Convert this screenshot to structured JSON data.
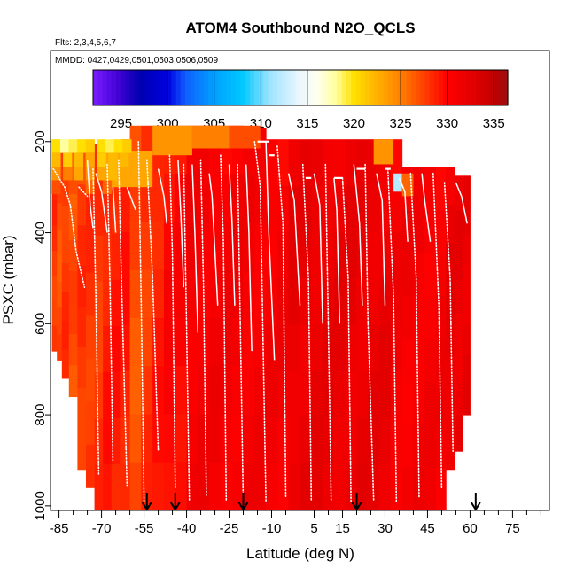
{
  "chart_data": {
    "type": "heatmap",
    "title": "ATOM4 Southbound N2O_QCLS",
    "subtitle_flights": "Flts: 2,3,4,5,6,7",
    "subtitle_dates": "MMDD: 0427,0429,0501,0503,0506,0509",
    "xlabel": "Latitude (deg N)",
    "ylabel": "PSXC (mbar)",
    "xlim": [
      -88,
      88
    ],
    "ylim": [
      1010,
      0
    ],
    "x_ticks": [
      -85,
      -70,
      -55,
      -40,
      -25,
      -10,
      5,
      15,
      30,
      45,
      60,
      75
    ],
    "x_tick_labels": [
      "-85",
      "-70",
      "-55",
      "-40",
      "-25",
      "-10",
      "5",
      "15",
      "30",
      "45",
      "60",
      "75"
    ],
    "x_minor_ticks": [
      -80,
      -75,
      -65,
      -60,
      -50,
      -45,
      -35,
      -30,
      -20,
      -15,
      -5,
      0,
      10,
      20,
      25,
      35,
      40,
      50,
      55,
      65,
      70,
      80,
      85
    ],
    "y_ticks": [
      200,
      400,
      600,
      800,
      1000
    ],
    "y_tick_labels": [
      "200",
      "400",
      "600",
      "800",
      "1000"
    ],
    "colorbar": {
      "min": 292,
      "max": 336.5,
      "ticks": [
        295,
        300,
        305,
        310,
        315,
        320,
        325,
        330,
        335
      ],
      "tick_labels": [
        "295",
        "300",
        "305",
        "310",
        "315",
        "320",
        "325",
        "330",
        "335"
      ],
      "color_stops": [
        [
          292,
          "#7a1cff"
        ],
        [
          295,
          "#3a00d0"
        ],
        [
          297,
          "#0000b0"
        ],
        [
          300,
          "#0000e0"
        ],
        [
          302,
          "#1060ff"
        ],
        [
          305,
          "#00a0ff"
        ],
        [
          308,
          "#00c8ff"
        ],
        [
          311,
          "#a0e4ff"
        ],
        [
          314,
          "#e8f6ff"
        ],
        [
          316,
          "#fffff0"
        ],
        [
          318,
          "#ffffa0"
        ],
        [
          320,
          "#ffe000"
        ],
        [
          322.5,
          "#ffb000"
        ],
        [
          325,
          "#ff8000"
        ],
        [
          327.5,
          "#ff4000"
        ],
        [
          330,
          "#ff0000"
        ],
        [
          333,
          "#e00000"
        ],
        [
          335,
          "#c00000"
        ],
        [
          336.5,
          "#9a1010"
        ]
      ]
    },
    "profile_columns": [
      {
        "lat": -86.5,
        "top": 220,
        "bottom": 660,
        "value": 328
      },
      {
        "lat": -85,
        "top": 220,
        "bottom": 680,
        "value": 327
      },
      {
        "lat": -83,
        "top": 215,
        "bottom": 720,
        "value": 328
      },
      {
        "lat": -80,
        "top": 210,
        "bottom": 760,
        "value": 327
      },
      {
        "lat": -77,
        "top": 205,
        "bottom": 920,
        "value": 328
      },
      {
        "lat": -74,
        "top": 205,
        "bottom": 960,
        "value": 328
      },
      {
        "lat": -71,
        "top": 205,
        "bottom": 1010,
        "value": 328
      },
      {
        "lat": -68,
        "top": 200,
        "bottom": 1010,
        "value": 329
      },
      {
        "lat": -65,
        "top": 200,
        "bottom": 1010,
        "value": 329
      },
      {
        "lat": -62,
        "top": 195,
        "bottom": 1010,
        "value": 329
      },
      {
        "lat": -58,
        "top": 165,
        "bottom": 1010,
        "value": 327
      },
      {
        "lat": -54,
        "top": 165,
        "bottom": 1010,
        "value": 328
      },
      {
        "lat": -50,
        "top": 165,
        "bottom": 1010,
        "value": 329
      },
      {
        "lat": -46,
        "top": 165,
        "bottom": 1010,
        "value": 330
      },
      {
        "lat": -42,
        "top": 165,
        "bottom": 1010,
        "value": 330
      },
      {
        "lat": -38,
        "top": 165,
        "bottom": 1010,
        "value": 331
      },
      {
        "lat": -34,
        "top": 165,
        "bottom": 1010,
        "value": 331
      },
      {
        "lat": -30,
        "top": 165,
        "bottom": 1010,
        "value": 331
      },
      {
        "lat": -26,
        "top": 165,
        "bottom": 1010,
        "value": 331
      },
      {
        "lat": -22,
        "top": 165,
        "bottom": 1010,
        "value": 331
      },
      {
        "lat": -18,
        "top": 170,
        "bottom": 1010,
        "value": 331
      },
      {
        "lat": -14,
        "top": 170,
        "bottom": 1010,
        "value": 331
      },
      {
        "lat": -10,
        "top": 195,
        "bottom": 1010,
        "value": 331
      },
      {
        "lat": -6,
        "top": 195,
        "bottom": 1010,
        "value": 331
      },
      {
        "lat": -2,
        "top": 195,
        "bottom": 1010,
        "value": 332
      },
      {
        "lat": 2,
        "top": 195,
        "bottom": 1010,
        "value": 332
      },
      {
        "lat": 6,
        "top": 195,
        "bottom": 1010,
        "value": 332
      },
      {
        "lat": 10,
        "top": 195,
        "bottom": 1010,
        "value": 332
      },
      {
        "lat": 14,
        "top": 195,
        "bottom": 1010,
        "value": 332
      },
      {
        "lat": 18,
        "top": 195,
        "bottom": 1010,
        "value": 332
      },
      {
        "lat": 22,
        "top": 195,
        "bottom": 1010,
        "value": 332
      },
      {
        "lat": 26,
        "top": 195,
        "bottom": 1010,
        "value": 332
      },
      {
        "lat": 30,
        "top": 195,
        "bottom": 1010,
        "value": 332
      },
      {
        "lat": 34,
        "top": 195,
        "bottom": 1010,
        "value": 331
      },
      {
        "lat": 38,
        "top": 255,
        "bottom": 1010,
        "value": 331
      },
      {
        "lat": 42,
        "top": 255,
        "bottom": 1010,
        "value": 331
      },
      {
        "lat": 46,
        "top": 255,
        "bottom": 1010,
        "value": 331
      },
      {
        "lat": 50,
        "top": 255,
        "bottom": 1010,
        "value": 331
      },
      {
        "lat": 53,
        "top": 255,
        "bottom": 920,
        "value": 332
      },
      {
        "lat": 56,
        "top": 275,
        "bottom": 880,
        "value": 332
      },
      {
        "lat": 59,
        "top": 275,
        "bottom": 800,
        "value": 332
      }
    ],
    "overlay_patches": [
      {
        "lat0": -69,
        "lat1": -52,
        "top": 220,
        "bottom": 300,
        "value": 323
      },
      {
        "lat0": -52,
        "lat1": -38,
        "top": 165,
        "bottom": 230,
        "value": 324
      },
      {
        "lat0": -38,
        "lat1": -25,
        "top": 165,
        "bottom": 215,
        "value": 325
      },
      {
        "lat0": -25,
        "lat1": -14,
        "top": 165,
        "bottom": 215,
        "value": 327
      },
      {
        "lat0": 26,
        "lat1": 33,
        "top": 195,
        "bottom": 250,
        "value": 324
      },
      {
        "lat0": 33,
        "lat1": 36,
        "top": 270,
        "bottom": 310,
        "value": 312
      },
      {
        "lat0": 36,
        "lat1": 40,
        "top": 270,
        "bottom": 320,
        "value": 326
      }
    ],
    "hot_spots": [
      {
        "lat": -87,
        "p": 210,
        "value": 320
      },
      {
        "lat": -85,
        "p": 210,
        "value": 320
      },
      {
        "lat": -83,
        "p": 210,
        "value": 318
      },
      {
        "lat": -80,
        "p": 210,
        "value": 319
      },
      {
        "lat": -77,
        "p": 210,
        "value": 320
      },
      {
        "lat": -74,
        "p": 210,
        "value": 321
      },
      {
        "lat": -70,
        "p": 210,
        "value": 320
      },
      {
        "lat": -67,
        "p": 210,
        "value": 319
      },
      {
        "lat": -64,
        "p": 210,
        "value": 320
      },
      {
        "lat": -61,
        "p": 210,
        "value": 321
      },
      {
        "lat": -86,
        "p": 240,
        "value": 322
      },
      {
        "lat": -82,
        "p": 240,
        "value": 321
      },
      {
        "lat": -78,
        "p": 240,
        "value": 322
      },
      {
        "lat": -74,
        "p": 240,
        "value": 323
      },
      {
        "lat": -70,
        "p": 240,
        "value": 321
      },
      {
        "lat": -66,
        "p": 240,
        "value": 322
      },
      {
        "lat": -62,
        "p": 240,
        "value": 322
      },
      {
        "lat": -86,
        "p": 270,
        "value": 324
      },
      {
        "lat": -82,
        "p": 270,
        "value": 325
      },
      {
        "lat": -78,
        "p": 270,
        "value": 323
      },
      {
        "lat": -74,
        "p": 270,
        "value": 324
      },
      {
        "lat": -70,
        "p": 270,
        "value": 323
      },
      {
        "lat": -66,
        "p": 270,
        "value": 322
      },
      {
        "lat": -62,
        "p": 270,
        "value": 323
      },
      {
        "lat": -86,
        "p": 300,
        "value": 327
      },
      {
        "lat": -80,
        "p": 300,
        "value": 327
      },
      {
        "lat": -74,
        "p": 300,
        "value": 326
      },
      {
        "lat": -68,
        "p": 300,
        "value": 326
      }
    ],
    "flight_tracks": [
      {
        "lat": [
          -87,
          -83,
          -81,
          -79,
          -76
        ],
        "p": [
          260,
          300,
          340,
          440,
          520
        ],
        "dotted": true
      },
      {
        "lat": [
          -78,
          -75
        ],
        "p": [
          300,
          320
        ],
        "dotted": true
      },
      {
        "lat": [
          -75,
          -74,
          -73
        ],
        "p": [
          240,
          340,
          390
        ],
        "dotted": false
      },
      {
        "lat": [
          -73,
          -72,
          -71
        ],
        "p": [
          260,
          540,
          930
        ],
        "dotted": true
      },
      {
        "lat": [
          -72,
          -70,
          -68
        ],
        "p": [
          270,
          310,
          400
        ],
        "dotted": false
      },
      {
        "lat": [
          -68,
          -67,
          -66
        ],
        "p": [
          250,
          520,
          900
        ],
        "dotted": true
      },
      {
        "lat": [
          -66,
          -65
        ],
        "p": [
          300,
          400
        ],
        "dotted": false
      },
      {
        "lat": [
          -64,
          -63,
          -61
        ],
        "p": [
          240,
          500,
          960
        ],
        "dotted": true
      },
      {
        "lat": [
          -61,
          -58
        ],
        "p": [
          300,
          350
        ],
        "dotted": false
      },
      {
        "lat": [
          -57,
          -56,
          -55
        ],
        "p": [
          200,
          560,
          990
        ],
        "dotted": true
      },
      {
        "lat": [
          -54,
          -52,
          -50
        ],
        "p": [
          240,
          500,
          880
        ],
        "dotted": true
      },
      {
        "lat": [
          -50,
          -48,
          -47
        ],
        "p": [
          260,
          320,
          380
        ],
        "dotted": false
      },
      {
        "lat": [
          -46,
          -45,
          -44
        ],
        "p": [
          230,
          450,
          960
        ],
        "dotted": true
      },
      {
        "lat": [
          -43,
          -42,
          -41
        ],
        "p": [
          240,
          360,
          520
        ],
        "dotted": false
      },
      {
        "lat": [
          -41,
          -40,
          -39
        ],
        "p": [
          250,
          600,
          990
        ],
        "dotted": true
      },
      {
        "lat": [
          -38,
          -37,
          -36
        ],
        "p": [
          250,
          410,
          620
        ],
        "dotted": false
      },
      {
        "lat": [
          -35,
          -34,
          -33
        ],
        "p": [
          240,
          520,
          980
        ],
        "dotted": true
      },
      {
        "lat": [
          -32,
          -31,
          -29
        ],
        "p": [
          270,
          320,
          560
        ],
        "dotted": false
      },
      {
        "lat": [
          -28,
          -27,
          -26
        ],
        "p": [
          230,
          420,
          990
        ],
        "dotted": true
      },
      {
        "lat": [
          -25,
          -24,
          -23
        ],
        "p": [
          250,
          370,
          560
        ],
        "dotted": false
      },
      {
        "lat": [
          -22,
          -21,
          -20
        ],
        "p": [
          250,
          620,
          990
        ],
        "dotted": true
      },
      {
        "lat": [
          -19,
          -18,
          -17
        ],
        "p": [
          250,
          400,
          660
        ],
        "dotted": false
      },
      {
        "lat": [
          -16,
          -14,
          -12
        ],
        "p": [
          200,
          300,
          990
        ],
        "dotted": true
      },
      {
        "lat": [
          -12,
          -11,
          -9
        ],
        "p": [
          200,
          400,
          680
        ],
        "dotted": false
      },
      {
        "lat": [
          -8,
          -6,
          -5
        ],
        "p": [
          210,
          380,
          980
        ],
        "dotted": true
      },
      {
        "lat": [
          -4,
          -2,
          0
        ],
        "p": [
          270,
          330,
          560
        ],
        "dotted": false
      },
      {
        "lat": [
          1,
          3,
          4
        ],
        "p": [
          250,
          500,
          990
        ],
        "dotted": true
      },
      {
        "lat": [
          5,
          7,
          8
        ],
        "p": [
          270,
          340,
          600
        ],
        "dotted": false
      },
      {
        "lat": [
          9,
          10,
          11
        ],
        "p": [
          250,
          600,
          990
        ],
        "dotted": true
      },
      {
        "lat": [
          12,
          13,
          14
        ],
        "p": [
          280,
          350,
          600
        ],
        "dotted": false
      },
      {
        "lat": [
          15,
          17,
          18
        ],
        "p": [
          280,
          500,
          990
        ],
        "dotted": true
      },
      {
        "lat": [
          19,
          21,
          22
        ],
        "p": [
          250,
          380,
          560
        ],
        "dotted": false
      },
      {
        "lat": [
          23,
          24,
          26
        ],
        "p": [
          250,
          600,
          990
        ],
        "dotted": true
      },
      {
        "lat": [
          27,
          29,
          30
        ],
        "p": [
          270,
          330,
          560
        ],
        "dotted": false
      },
      {
        "lat": [
          31,
          33,
          34
        ],
        "p": [
          260,
          540,
          990
        ],
        "dotted": true
      },
      {
        "lat": [
          35,
          37,
          38
        ],
        "p": [
          280,
          310,
          420
        ],
        "dotted": false
      },
      {
        "lat": [
          39,
          41,
          42
        ],
        "p": [
          270,
          500,
          980
        ],
        "dotted": true
      },
      {
        "lat": [
          43,
          44,
          46
        ],
        "p": [
          270,
          330,
          420
        ],
        "dotted": false
      },
      {
        "lat": [
          47,
          49,
          50
        ],
        "p": [
          270,
          560,
          960
        ],
        "dotted": true
      },
      {
        "lat": [
          51,
          53,
          54
        ],
        "p": [
          290,
          500,
          880
        ],
        "dotted": true
      },
      {
        "lat": [
          55,
          57,
          59
        ],
        "p": [
          290,
          320,
          380
        ],
        "dotted": false
      }
    ],
    "track_segments_top": [
      {
        "lat0": -15,
        "lat1": -11,
        "p": 200
      },
      {
        "lat0": -11,
        "lat1": -9,
        "p": 230
      },
      {
        "lat0": 2,
        "lat1": 4,
        "p": 280
      },
      {
        "lat0": 12,
        "lat1": 15,
        "p": 280
      },
      {
        "lat0": 20,
        "lat1": 23,
        "p": 260
      },
      {
        "lat0": 30,
        "lat1": 32,
        "p": 260
      }
    ],
    "turnaround_markers": [
      -54,
      -44,
      -20,
      20,
      62
    ]
  }
}
